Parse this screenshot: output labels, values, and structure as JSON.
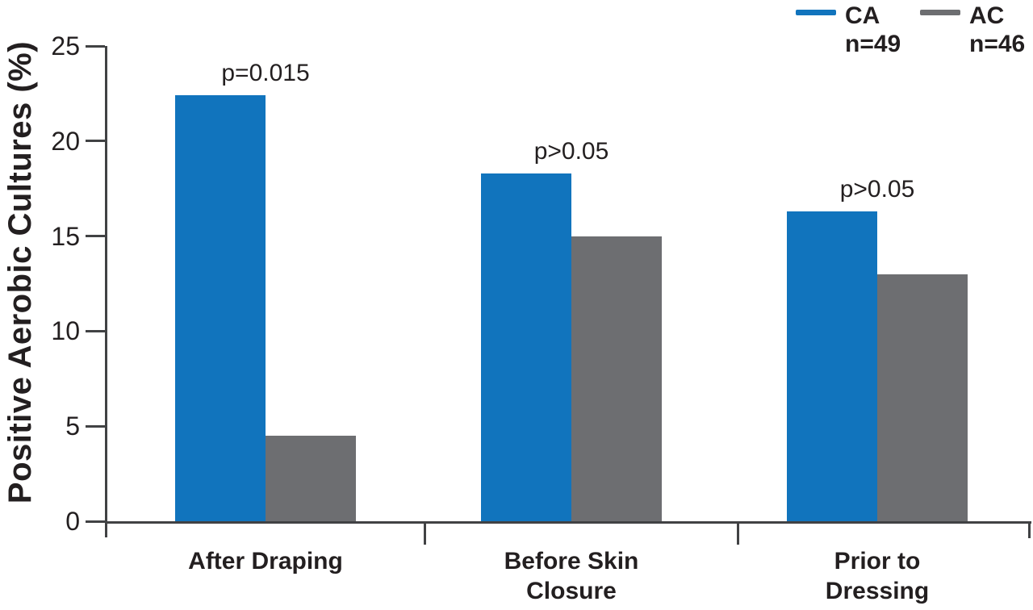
{
  "figure": {
    "background": "#ffffff",
    "text_color": "#231f20",
    "axis_color": "#414244"
  },
  "chart_data": {
    "type": "bar",
    "title": "",
    "xlabel": "",
    "ylabel": "Positive Aerobic Cultures (%)",
    "ylim": [
      0,
      25
    ],
    "yticks": [
      0,
      5,
      10,
      15,
      20,
      25
    ],
    "grid": false,
    "legend_position": "top-right",
    "categories": [
      "After Draping",
      "Before Skin Closure",
      "Prior to Dressing"
    ],
    "category_lines": [
      [
        "After Draping"
      ],
      [
        "Before Skin",
        "Closure"
      ],
      [
        "Prior to",
        "Dressing"
      ]
    ],
    "series": [
      {
        "name": "CA",
        "n_label": "n=49",
        "color": "#1174bd",
        "values": [
          22.4,
          18.3,
          16.3
        ]
      },
      {
        "name": "AC",
        "n_label": "n=46",
        "color": "#6d6e71",
        "values": [
          4.5,
          15.0,
          13.0
        ]
      }
    ],
    "p_values": [
      "p=0.015",
      "p>0.05",
      "p>0.05"
    ]
  }
}
